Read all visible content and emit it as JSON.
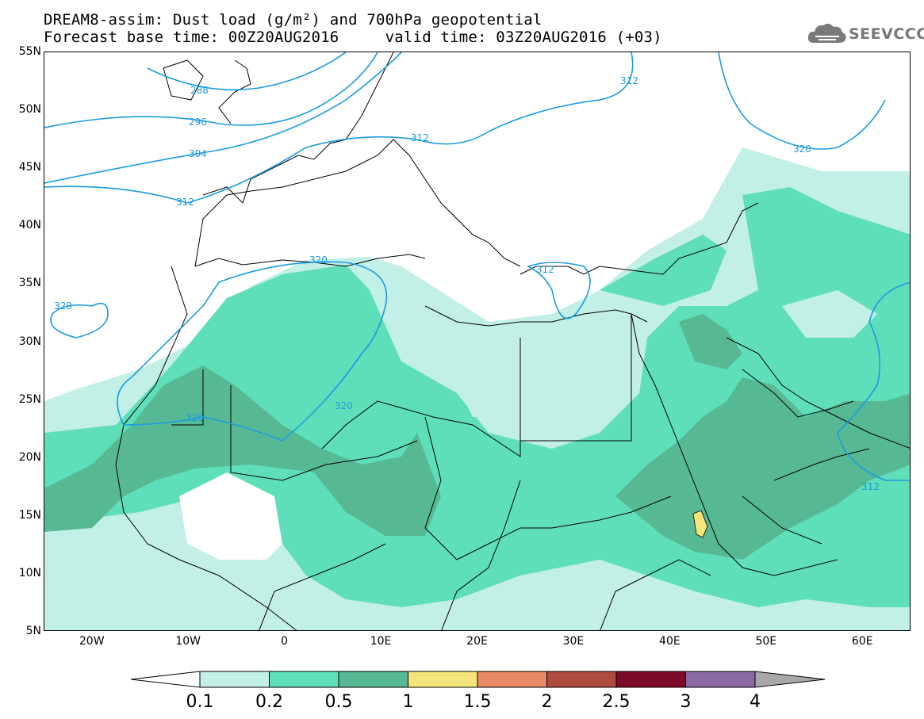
{
  "title": {
    "line1": "DREAM8-assim: Dust load (g/m²) and 700hPa geopotential",
    "line2": "Forecast base time: 00Z20AUG2016     valid time: 03Z20AUG2016 (+03)"
  },
  "logo_text": "SEEVCCC",
  "axes": {
    "lat_labels": [
      "55N",
      "50N",
      "45N",
      "40N",
      "35N",
      "30N",
      "25N",
      "20N",
      "15N",
      "10N",
      "5N"
    ],
    "lon_labels": [
      "20W",
      "10W",
      "0",
      "10E",
      "20E",
      "30E",
      "40E",
      "50E",
      "60E"
    ],
    "lat_range": [
      5,
      55
    ],
    "lon_range": [
      -25,
      65
    ]
  },
  "contour_labels": [
    "288",
    "296",
    "304",
    "312",
    "312",
    "312",
    "312",
    "320",
    "320",
    "320",
    "320",
    "320",
    "312"
  ],
  "colorbar": {
    "levels": [
      "0.1",
      "0.2",
      "0.5",
      "1",
      "1.5",
      "2",
      "2.5",
      "3",
      "4"
    ],
    "colors": [
      "#c2efe6",
      "#5fdfb9",
      "#57b894",
      "#f3e57a",
      "#ea8a64",
      "#ad4b3e",
      "#7c0b2a",
      "#8b6aa3",
      "#a8a8a8"
    ]
  },
  "palette": {
    "contour": "#1c9be0",
    "land_border": "#000000"
  }
}
